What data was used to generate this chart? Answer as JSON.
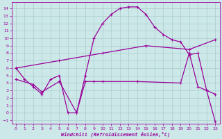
{
  "xlabel": "Windchill (Refroidissement éolien,°C)",
  "bg_color": "#cce8e8",
  "line_color": "#990099",
  "grid_color": "#aacccc",
  "xticks": [
    0,
    1,
    2,
    3,
    4,
    5,
    6,
    7,
    8,
    9,
    10,
    11,
    12,
    13,
    14,
    15,
    16,
    17,
    18,
    19,
    20,
    21,
    22,
    23
  ],
  "yticks": [
    -1,
    0,
    1,
    2,
    3,
    4,
    5,
    6,
    7,
    8,
    9,
    10,
    11,
    12,
    13,
    14
  ],
  "xlim": [
    -0.5,
    23.5
  ],
  "ylim": [
    -1.5,
    14.8
  ],
  "line1_x": [
    0,
    1,
    2,
    3,
    4,
    5,
    6,
    7,
    8,
    9,
    10,
    11,
    12,
    13,
    14,
    15,
    16,
    17,
    18,
    19,
    20,
    21,
    22,
    23
  ],
  "line1_y": [
    6.0,
    4.5,
    3.5,
    2.5,
    4.5,
    5.0,
    0.0,
    0.0,
    5.0,
    10.0,
    12.0,
    13.2,
    14.0,
    14.2,
    14.2,
    13.2,
    11.5,
    10.5,
    9.8,
    9.5,
    7.8,
    8.0,
    3.0,
    2.5
  ],
  "line2_x": [
    0,
    5,
    10,
    15,
    20,
    23
  ],
  "line2_y": [
    6.0,
    7.0,
    8.0,
    9.0,
    8.5,
    9.8
  ],
  "line3_x": [
    0,
    2,
    3,
    5,
    7,
    8,
    9,
    10,
    14,
    19,
    20,
    21,
    22,
    23
  ],
  "line3_y": [
    4.5,
    3.8,
    2.8,
    4.2,
    0.0,
    4.2,
    4.2,
    4.2,
    4.2,
    4.0,
    8.0,
    3.5,
    3.0,
    -1.2
  ]
}
